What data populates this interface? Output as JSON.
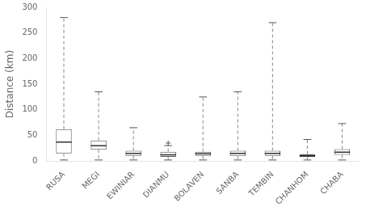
{
  "chart_data": {
    "type": "box",
    "categories": [
      "RUSA",
      "MEGI",
      "EWINIAR",
      "DIANMU",
      "BOLAVEN",
      "SANBA",
      "TEMBIN",
      "CHANHOM",
      "CHABA"
    ],
    "values": [
      {
        "min": 2,
        "q1": 15,
        "median": 37,
        "q3": 62,
        "max": 280,
        "fliers": []
      },
      {
        "min": 2,
        "q1": 22,
        "median": 30,
        "q3": 40,
        "max": 135,
        "fliers": []
      },
      {
        "min": 2,
        "q1": 10,
        "median": 15,
        "q3": 20,
        "max": 65,
        "fliers": []
      },
      {
        "min": 2,
        "q1": 8,
        "median": 12,
        "q3": 18,
        "max": 30,
        "fliers": [
          35
        ]
      },
      {
        "min": 2,
        "q1": 10,
        "median": 14,
        "q3": 18,
        "max": 125,
        "fliers": []
      },
      {
        "min": 2,
        "q1": 10,
        "median": 15,
        "q3": 20,
        "max": 135,
        "fliers": []
      },
      {
        "min": 2,
        "q1": 10,
        "median": 15,
        "q3": 20,
        "max": 270,
        "fliers": []
      },
      {
        "min": 2,
        "q1": 8,
        "median": 10,
        "q3": 13,
        "max": 42,
        "fliers": []
      },
      {
        "min": 2,
        "q1": 12,
        "median": 17,
        "q3": 23,
        "max": 73,
        "fliers": []
      }
    ],
    "colors": [
      "white",
      "white",
      "white",
      "white",
      "white",
      "white",
      "white",
      "#aaaaaa",
      "white"
    ],
    "ylabel": "Distance (km)",
    "ylim": [
      0,
      300
    ],
    "yticks": [
      0,
      50,
      100,
      150,
      200,
      250,
      300
    ],
    "grid": false
  }
}
